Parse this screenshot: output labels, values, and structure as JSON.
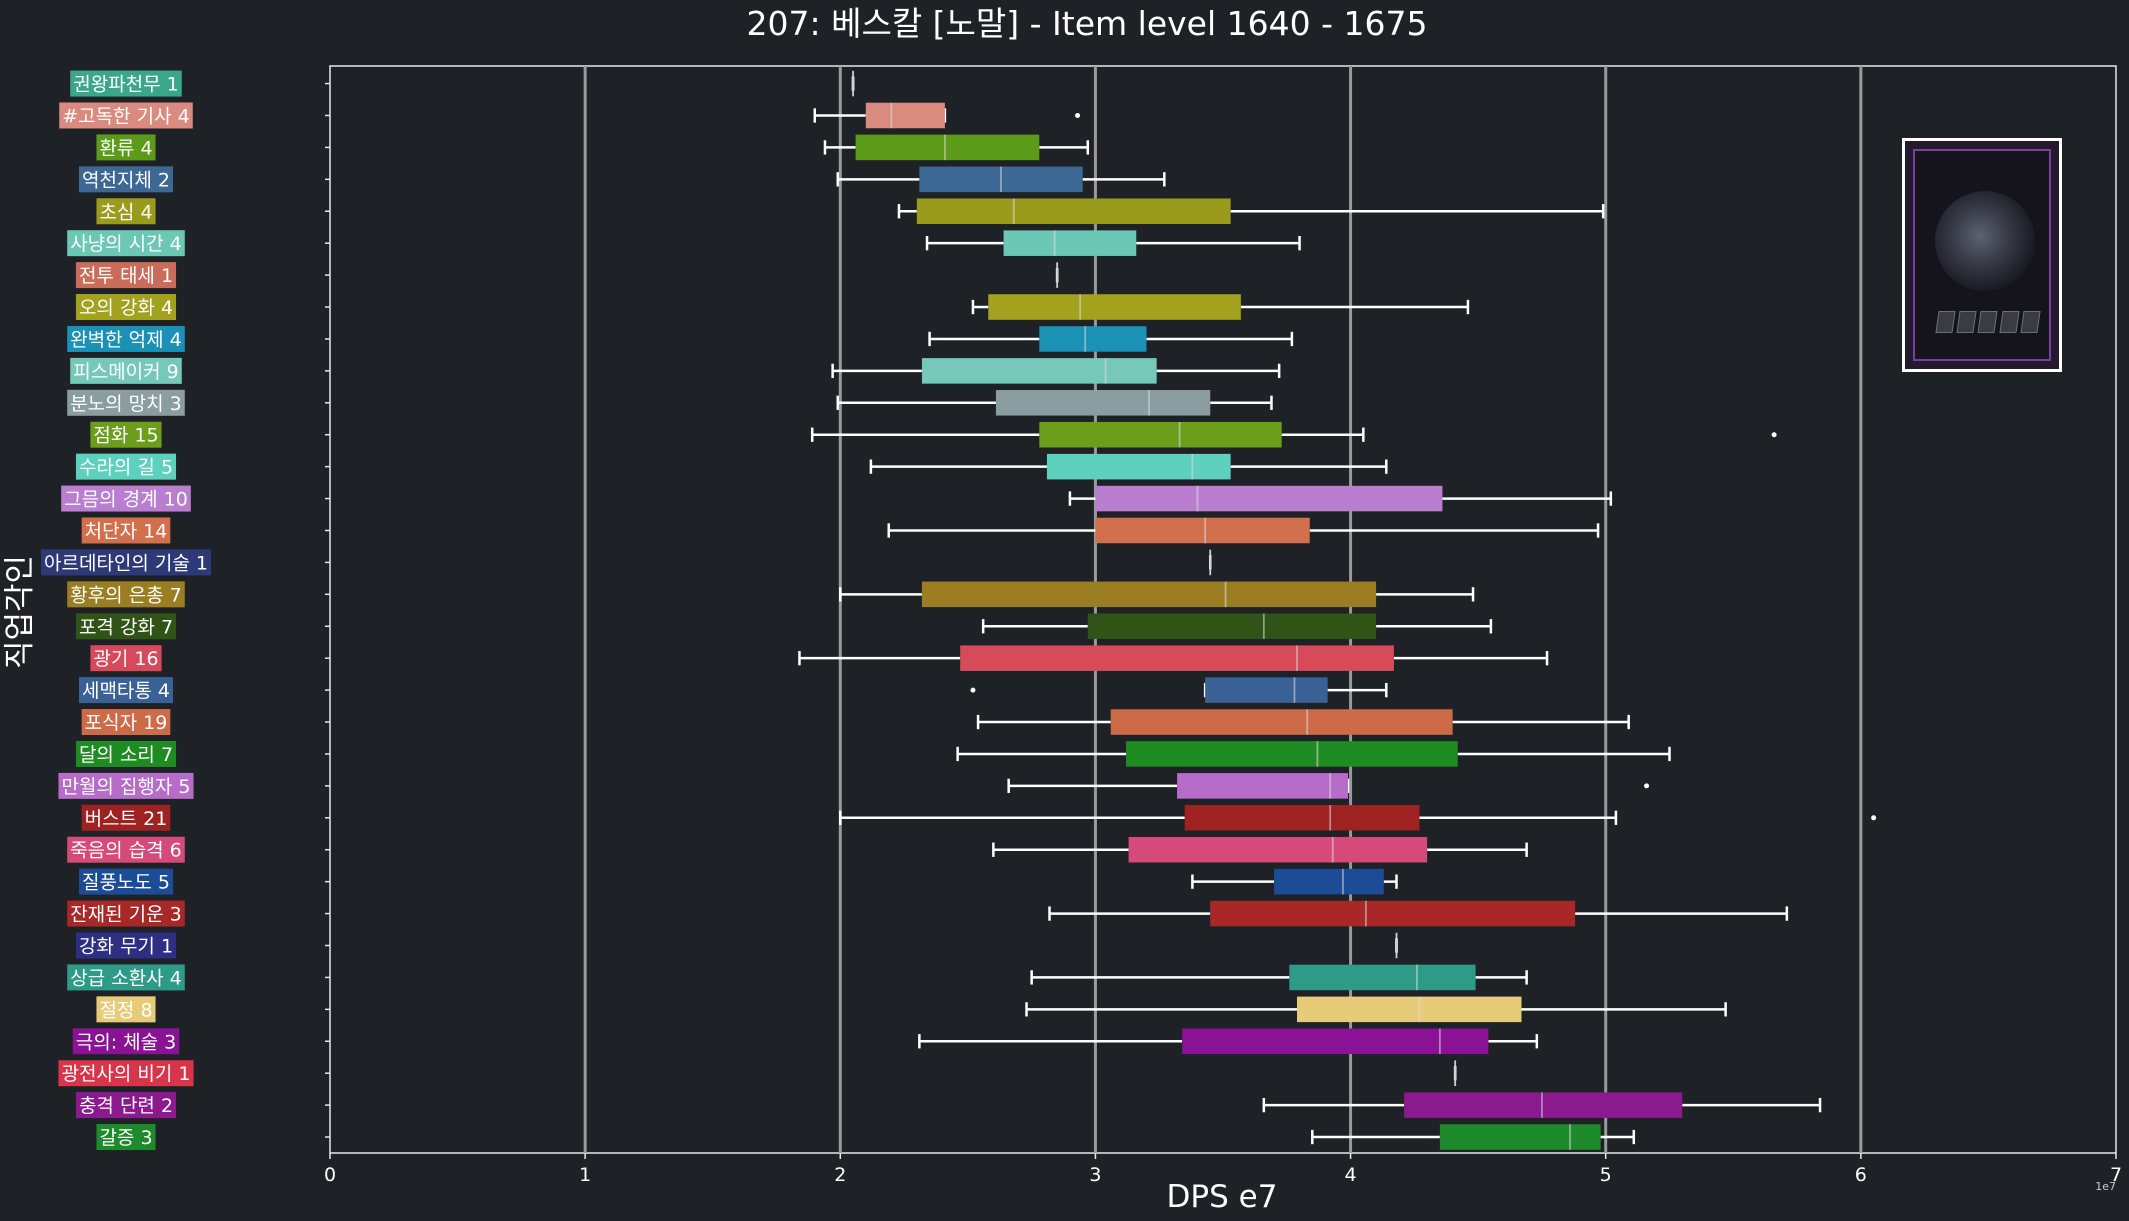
{
  "chart_data": {
    "type": "box",
    "title": "207: 베스칼 [노말] - Item level 1640 - 1675",
    "xlabel": "DPS e7",
    "ylabel": "직업각인",
    "offset_text": "1e7",
    "xlim": [
      0,
      7
    ],
    "xticks": [
      0,
      1,
      2,
      3,
      4,
      5,
      6,
      7
    ],
    "grid": true,
    "orientation": "horizontal",
    "categories": [
      {
        "label": "권왕파천무 1",
        "color": "#3aa68c",
        "min": 2.05,
        "q1": 2.05,
        "median": 2.05,
        "q3": 2.05,
        "max": 2.05,
        "outliers": []
      },
      {
        "label": "#고독한 기사 4",
        "color": "#d98b80",
        "min": 1.9,
        "q1": 2.1,
        "median": 2.2,
        "q3": 2.41,
        "max": 2.41,
        "outliers": [
          2.93
        ]
      },
      {
        "label": "환류 4",
        "color": "#5c9a1a",
        "min": 1.94,
        "q1": 2.06,
        "median": 2.41,
        "q3": 2.78,
        "max": 2.97,
        "outliers": []
      },
      {
        "label": "역천지체 2",
        "color": "#3e6894",
        "min": 1.99,
        "q1": 2.31,
        "median": 2.63,
        "q3": 2.95,
        "max": 3.27,
        "outliers": []
      },
      {
        "label": "초심 4",
        "color": "#9a9a1c",
        "min": 2.23,
        "q1": 2.3,
        "median": 2.68,
        "q3": 3.53,
        "max": 4.99,
        "outliers": []
      },
      {
        "label": "사냥의 시간 4",
        "color": "#6cc8b4",
        "min": 2.34,
        "q1": 2.64,
        "median": 2.84,
        "q3": 3.16,
        "max": 3.8,
        "outliers": []
      },
      {
        "label": "전투 태세 1",
        "color": "#c96c5a",
        "min": 2.85,
        "q1": 2.85,
        "median": 2.85,
        "q3": 2.85,
        "max": 2.85,
        "outliers": []
      },
      {
        "label": "오의 강화 4",
        "color": "#a3a21e",
        "min": 2.52,
        "q1": 2.58,
        "median": 2.94,
        "q3": 3.57,
        "max": 4.46,
        "outliers": []
      },
      {
        "label": "완벽한 억제 4",
        "color": "#1a91b5",
        "min": 2.35,
        "q1": 2.78,
        "median": 2.96,
        "q3": 3.2,
        "max": 3.77,
        "outliers": []
      },
      {
        "label": "피스메이커 9",
        "color": "#76c8b8",
        "min": 1.97,
        "q1": 2.32,
        "median": 3.04,
        "q3": 3.24,
        "max": 3.72,
        "outliers": []
      },
      {
        "label": "분노의 망치 3",
        "color": "#8a9ea2",
        "min": 1.99,
        "q1": 2.61,
        "median": 3.21,
        "q3": 3.45,
        "max": 3.69,
        "outliers": []
      },
      {
        "label": "점화 15",
        "color": "#6b9e1a",
        "min": 1.89,
        "q1": 2.78,
        "median": 3.33,
        "q3": 3.73,
        "max": 4.05,
        "outliers": [
          5.66
        ]
      },
      {
        "label": "수라의 길 5",
        "color": "#5ed1be",
        "min": 2.12,
        "q1": 2.81,
        "median": 3.38,
        "q3": 3.53,
        "max": 4.14,
        "outliers": []
      },
      {
        "label": "그믐의 경계 10",
        "color": "#b97ed0",
        "min": 2.9,
        "q1": 3.0,
        "median": 3.4,
        "q3": 4.36,
        "max": 5.02,
        "outliers": []
      },
      {
        "label": "처단자 14",
        "color": "#d2704e",
        "min": 2.19,
        "q1": 3.0,
        "median": 3.43,
        "q3": 3.84,
        "max": 4.97,
        "outliers": []
      },
      {
        "label": "아르데타인의 기술 1",
        "color": "#2e3a78",
        "min": 3.45,
        "q1": 3.45,
        "median": 3.45,
        "q3": 3.45,
        "max": 3.45,
        "outliers": []
      },
      {
        "label": "황후의 은총 7",
        "color": "#9b7e22",
        "min": 2.0,
        "q1": 2.32,
        "median": 3.51,
        "q3": 4.1,
        "max": 4.48,
        "outliers": []
      },
      {
        "label": "포격 강화 7",
        "color": "#2f5416",
        "min": 2.56,
        "q1": 2.97,
        "median": 3.66,
        "q3": 4.1,
        "max": 4.55,
        "outliers": []
      },
      {
        "label": "광기 16",
        "color": "#d64a5a",
        "min": 1.84,
        "q1": 2.47,
        "median": 3.79,
        "q3": 4.17,
        "max": 4.77,
        "outliers": []
      },
      {
        "label": "세맥타통 4",
        "color": "#3a6196",
        "min": 3.43,
        "q1": 3.43,
        "median": 3.78,
        "q3": 3.91,
        "max": 4.14,
        "outliers": [
          2.52
        ]
      },
      {
        "label": "포식자 19",
        "color": "#cd6a48",
        "min": 2.54,
        "q1": 3.06,
        "median": 3.83,
        "q3": 4.4,
        "max": 5.09,
        "outliers": []
      },
      {
        "label": "달의 소리 7",
        "color": "#1e8c22",
        "min": 2.46,
        "q1": 3.12,
        "median": 3.87,
        "q3": 4.42,
        "max": 5.25,
        "outliers": []
      },
      {
        "label": "만월의 집행자 5",
        "color": "#b66cc8",
        "min": 2.66,
        "q1": 3.32,
        "median": 3.92,
        "q3": 3.99,
        "max": 3.99,
        "outliers": [
          5.16
        ]
      },
      {
        "label": "버스트 21",
        "color": "#9e2222",
        "min": 2.0,
        "q1": 3.35,
        "median": 3.92,
        "q3": 4.27,
        "max": 5.04,
        "outliers": [
          6.05
        ]
      },
      {
        "label": "죽음의 습격 6",
        "color": "#d64a7a",
        "min": 2.6,
        "q1": 3.13,
        "median": 3.93,
        "q3": 4.3,
        "max": 4.69,
        "outliers": []
      },
      {
        "label": "질풍노도 5",
        "color": "#1c4c96",
        "min": 3.38,
        "q1": 3.7,
        "median": 3.97,
        "q3": 4.13,
        "max": 4.18,
        "outliers": []
      },
      {
        "label": "잔재된 기운 3",
        "color": "#a82828",
        "min": 2.82,
        "q1": 3.45,
        "median": 4.06,
        "q3": 4.88,
        "max": 5.71,
        "outliers": []
      },
      {
        "label": "강화 무기 1",
        "color": "#2c2f82",
        "min": 4.18,
        "q1": 4.18,
        "median": 4.18,
        "q3": 4.18,
        "max": 4.18,
        "outliers": []
      },
      {
        "label": "상급 소환사 4",
        "color": "#2e9a88",
        "min": 2.75,
        "q1": 3.76,
        "median": 4.26,
        "q3": 4.49,
        "max": 4.69,
        "outliers": []
      },
      {
        "label": "절정 8",
        "color": "#e6cc78",
        "min": 2.73,
        "q1": 3.79,
        "median": 4.27,
        "q3": 4.67,
        "max": 5.47,
        "outliers": []
      },
      {
        "label": "극의: 체술 3",
        "color": "#8a1294",
        "min": 2.31,
        "q1": 3.34,
        "median": 4.35,
        "q3": 4.54,
        "max": 4.73,
        "outliers": []
      },
      {
        "label": "광전사의 비기 1",
        "color": "#d8344a",
        "min": 4.41,
        "q1": 4.41,
        "median": 4.41,
        "q3": 4.41,
        "max": 4.41,
        "outliers": []
      },
      {
        "label": "충격 단련 2",
        "color": "#8a1a8e",
        "min": 3.66,
        "q1": 4.21,
        "median": 4.75,
        "q3": 5.3,
        "max": 5.84,
        "outliers": []
      },
      {
        "label": "갈증 3",
        "color": "#1e8a2c",
        "min": 3.85,
        "q1": 4.35,
        "median": 4.86,
        "q3": 4.98,
        "max": 5.11,
        "outliers": []
      }
    ]
  }
}
